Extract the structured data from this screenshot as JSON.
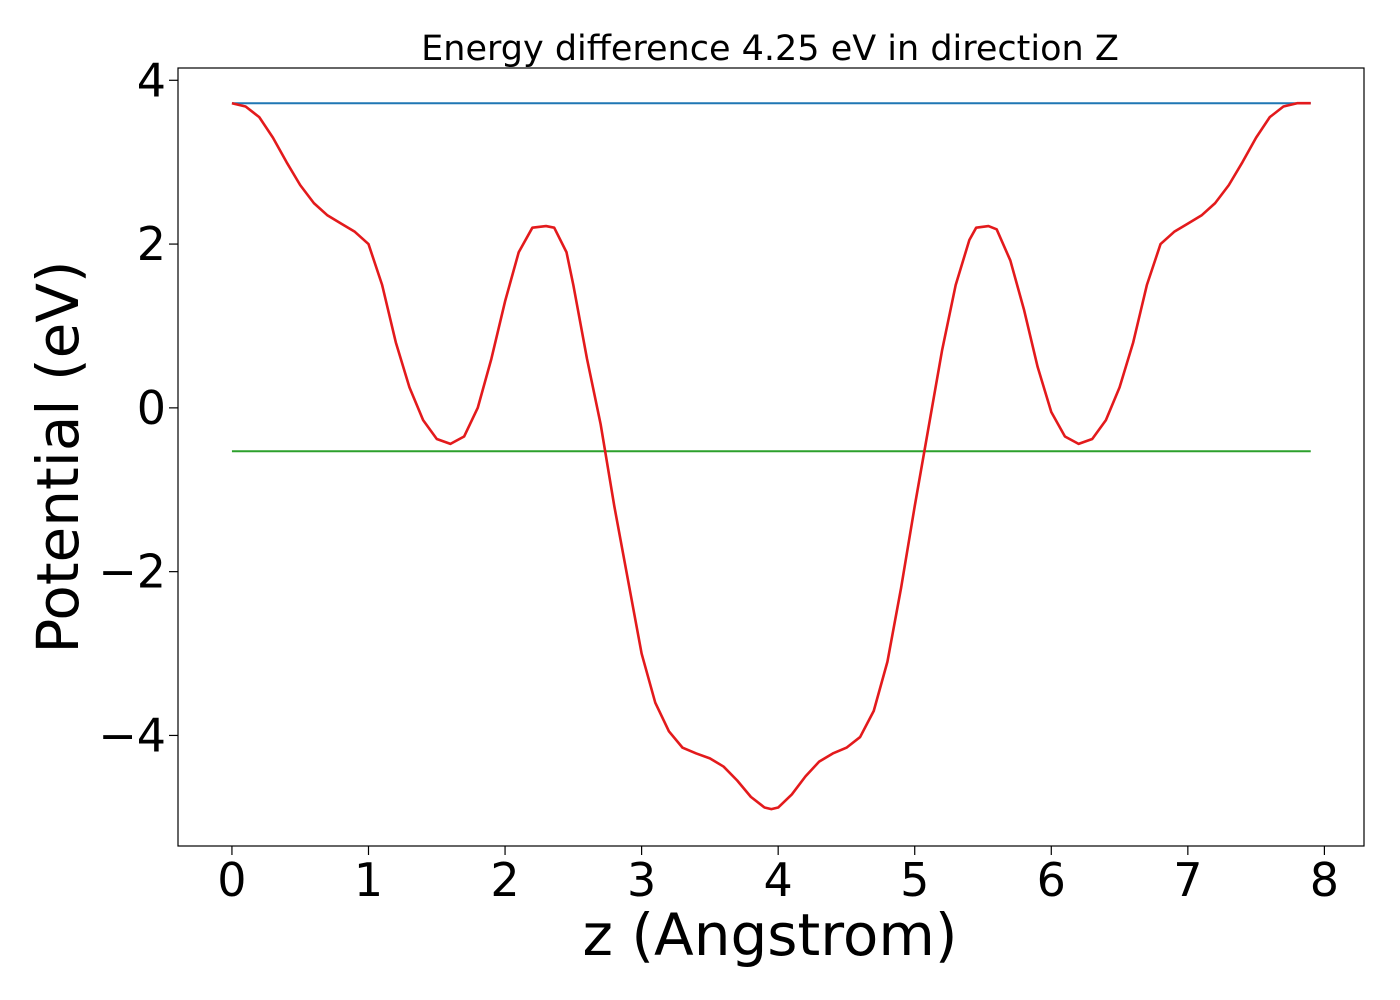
{
  "chart_data": {
    "type": "line",
    "title": "Energy difference 4.25 eV in direction Z",
    "xlabel": "z (Angstrom)",
    "ylabel": "Potential (eV)",
    "xlim": [
      -0.395,
      8.29
    ],
    "ylim": [
      -5.35,
      4.15
    ],
    "x_ticks": [
      0,
      1,
      2,
      3,
      4,
      5,
      6,
      7,
      8
    ],
    "y_ticks": [
      -4,
      -2,
      0,
      2,
      4
    ],
    "x_tick_labels": [
      "0",
      "1",
      "2",
      "3",
      "4",
      "5",
      "6",
      "7",
      "8"
    ],
    "y_tick_labels": [
      "−4",
      "−2",
      "0",
      "2",
      "4"
    ],
    "grid": false,
    "legend": "none",
    "series": [
      {
        "color": "#1f77b4",
        "x": [
          0,
          7.9
        ],
        "y": [
          3.72,
          3.72
        ]
      },
      {
        "color": "#2ca02c",
        "x": [
          0,
          7.9
        ],
        "y": [
          -0.53,
          -0.53
        ]
      },
      {
        "color": "#e31a1c",
        "x": [
          0,
          0.1,
          0.2,
          0.3,
          0.4,
          0.5,
          0.6,
          0.7,
          0.8,
          0.9,
          1.0,
          1.1,
          1.2,
          1.3,
          1.4,
          1.5,
          1.6,
          1.7,
          1.8,
          1.9,
          2.0,
          2.1,
          2.2,
          2.3,
          2.36,
          2.45,
          2.5,
          2.6,
          2.7,
          2.8,
          2.9,
          3.0,
          3.1,
          3.2,
          3.3,
          3.4,
          3.5,
          3.6,
          3.7,
          3.8,
          3.9,
          3.95,
          4.0,
          4.1,
          4.2,
          4.3,
          4.4,
          4.5,
          4.6,
          4.7,
          4.8,
          4.9,
          5.0,
          5.1,
          5.2,
          5.3,
          5.4,
          5.45,
          5.54,
          5.6,
          5.7,
          5.8,
          5.9,
          6.0,
          6.1,
          6.2,
          6.3,
          6.4,
          6.5,
          6.6,
          6.7,
          6.8,
          6.9,
          7.0,
          7.1,
          7.2,
          7.3,
          7.4,
          7.5,
          7.6,
          7.7,
          7.8,
          7.9
        ],
        "y": [
          3.72,
          3.68,
          3.55,
          3.3,
          3.0,
          2.72,
          2.5,
          2.35,
          2.25,
          2.15,
          2.0,
          1.5,
          0.8,
          0.25,
          -0.15,
          -0.38,
          -0.44,
          -0.35,
          0.0,
          0.6,
          1.3,
          1.9,
          2.2,
          2.22,
          2.2,
          1.9,
          1.5,
          0.6,
          -0.2,
          -1.2,
          -2.1,
          -3.0,
          -3.6,
          -3.95,
          -4.15,
          -4.22,
          -4.28,
          -4.38,
          -4.55,
          -4.75,
          -4.88,
          -4.9,
          -4.88,
          -4.72,
          -4.5,
          -4.32,
          -4.22,
          -4.15,
          -4.02,
          -3.7,
          -3.1,
          -2.2,
          -1.2,
          -0.25,
          0.7,
          1.5,
          2.05,
          2.2,
          2.22,
          2.18,
          1.8,
          1.2,
          0.5,
          -0.05,
          -0.35,
          -0.44,
          -0.38,
          -0.15,
          0.25,
          0.8,
          1.5,
          2.0,
          2.15,
          2.25,
          2.35,
          2.5,
          2.72,
          3.0,
          3.3,
          3.55,
          3.68,
          3.72,
          3.72
        ]
      }
    ]
  }
}
